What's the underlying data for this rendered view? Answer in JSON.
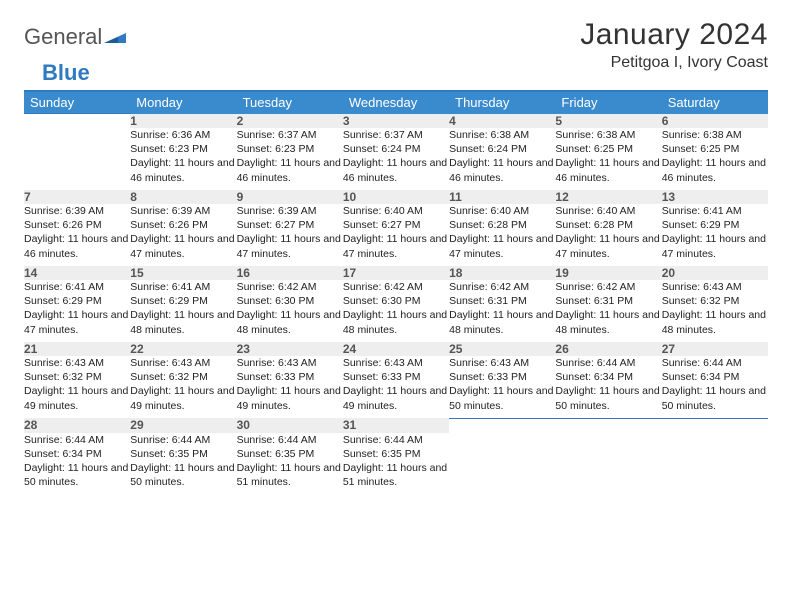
{
  "brand": {
    "word1": "General",
    "word2": "Blue"
  },
  "title": "January 2024",
  "location": "Petitgoa I, Ivory Coast",
  "colors": {
    "header_bg": "#3a8bce",
    "header_text": "#ffffff",
    "rule": "#2f7ac0",
    "daynum_bg": "#eeeeee",
    "daynum_text": "#555555",
    "body_text": "#222222",
    "page_bg": "#ffffff",
    "logo_gray": "#555555",
    "logo_blue": "#2f7ac0"
  },
  "weekday_labels": [
    "Sunday",
    "Monday",
    "Tuesday",
    "Wednesday",
    "Thursday",
    "Friday",
    "Saturday"
  ],
  "weeks": [
    [
      null,
      {
        "n": "1",
        "sr": "Sunrise: 6:36 AM",
        "ss": "Sunset: 6:23 PM",
        "dl": "Daylight: 11 hours and 46 minutes."
      },
      {
        "n": "2",
        "sr": "Sunrise: 6:37 AM",
        "ss": "Sunset: 6:23 PM",
        "dl": "Daylight: 11 hours and 46 minutes."
      },
      {
        "n": "3",
        "sr": "Sunrise: 6:37 AM",
        "ss": "Sunset: 6:24 PM",
        "dl": "Daylight: 11 hours and 46 minutes."
      },
      {
        "n": "4",
        "sr": "Sunrise: 6:38 AM",
        "ss": "Sunset: 6:24 PM",
        "dl": "Daylight: 11 hours and 46 minutes."
      },
      {
        "n": "5",
        "sr": "Sunrise: 6:38 AM",
        "ss": "Sunset: 6:25 PM",
        "dl": "Daylight: 11 hours and 46 minutes."
      },
      {
        "n": "6",
        "sr": "Sunrise: 6:38 AM",
        "ss": "Sunset: 6:25 PM",
        "dl": "Daylight: 11 hours and 46 minutes."
      }
    ],
    [
      {
        "n": "7",
        "sr": "Sunrise: 6:39 AM",
        "ss": "Sunset: 6:26 PM",
        "dl": "Daylight: 11 hours and 46 minutes."
      },
      {
        "n": "8",
        "sr": "Sunrise: 6:39 AM",
        "ss": "Sunset: 6:26 PM",
        "dl": "Daylight: 11 hours and 47 minutes."
      },
      {
        "n": "9",
        "sr": "Sunrise: 6:39 AM",
        "ss": "Sunset: 6:27 PM",
        "dl": "Daylight: 11 hours and 47 minutes."
      },
      {
        "n": "10",
        "sr": "Sunrise: 6:40 AM",
        "ss": "Sunset: 6:27 PM",
        "dl": "Daylight: 11 hours and 47 minutes."
      },
      {
        "n": "11",
        "sr": "Sunrise: 6:40 AM",
        "ss": "Sunset: 6:28 PM",
        "dl": "Daylight: 11 hours and 47 minutes."
      },
      {
        "n": "12",
        "sr": "Sunrise: 6:40 AM",
        "ss": "Sunset: 6:28 PM",
        "dl": "Daylight: 11 hours and 47 minutes."
      },
      {
        "n": "13",
        "sr": "Sunrise: 6:41 AM",
        "ss": "Sunset: 6:29 PM",
        "dl": "Daylight: 11 hours and 47 minutes."
      }
    ],
    [
      {
        "n": "14",
        "sr": "Sunrise: 6:41 AM",
        "ss": "Sunset: 6:29 PM",
        "dl": "Daylight: 11 hours and 47 minutes."
      },
      {
        "n": "15",
        "sr": "Sunrise: 6:41 AM",
        "ss": "Sunset: 6:29 PM",
        "dl": "Daylight: 11 hours and 48 minutes."
      },
      {
        "n": "16",
        "sr": "Sunrise: 6:42 AM",
        "ss": "Sunset: 6:30 PM",
        "dl": "Daylight: 11 hours and 48 minutes."
      },
      {
        "n": "17",
        "sr": "Sunrise: 6:42 AM",
        "ss": "Sunset: 6:30 PM",
        "dl": "Daylight: 11 hours and 48 minutes."
      },
      {
        "n": "18",
        "sr": "Sunrise: 6:42 AM",
        "ss": "Sunset: 6:31 PM",
        "dl": "Daylight: 11 hours and 48 minutes."
      },
      {
        "n": "19",
        "sr": "Sunrise: 6:42 AM",
        "ss": "Sunset: 6:31 PM",
        "dl": "Daylight: 11 hours and 48 minutes."
      },
      {
        "n": "20",
        "sr": "Sunrise: 6:43 AM",
        "ss": "Sunset: 6:32 PM",
        "dl": "Daylight: 11 hours and 48 minutes."
      }
    ],
    [
      {
        "n": "21",
        "sr": "Sunrise: 6:43 AM",
        "ss": "Sunset: 6:32 PM",
        "dl": "Daylight: 11 hours and 49 minutes."
      },
      {
        "n": "22",
        "sr": "Sunrise: 6:43 AM",
        "ss": "Sunset: 6:32 PM",
        "dl": "Daylight: 11 hours and 49 minutes."
      },
      {
        "n": "23",
        "sr": "Sunrise: 6:43 AM",
        "ss": "Sunset: 6:33 PM",
        "dl": "Daylight: 11 hours and 49 minutes."
      },
      {
        "n": "24",
        "sr": "Sunrise: 6:43 AM",
        "ss": "Sunset: 6:33 PM",
        "dl": "Daylight: 11 hours and 49 minutes."
      },
      {
        "n": "25",
        "sr": "Sunrise: 6:43 AM",
        "ss": "Sunset: 6:33 PM",
        "dl": "Daylight: 11 hours and 50 minutes."
      },
      {
        "n": "26",
        "sr": "Sunrise: 6:44 AM",
        "ss": "Sunset: 6:34 PM",
        "dl": "Daylight: 11 hours and 50 minutes."
      },
      {
        "n": "27",
        "sr": "Sunrise: 6:44 AM",
        "ss": "Sunset: 6:34 PM",
        "dl": "Daylight: 11 hours and 50 minutes."
      }
    ],
    [
      {
        "n": "28",
        "sr": "Sunrise: 6:44 AM",
        "ss": "Sunset: 6:34 PM",
        "dl": "Daylight: 11 hours and 50 minutes."
      },
      {
        "n": "29",
        "sr": "Sunrise: 6:44 AM",
        "ss": "Sunset: 6:35 PM",
        "dl": "Daylight: 11 hours and 50 minutes."
      },
      {
        "n": "30",
        "sr": "Sunrise: 6:44 AM",
        "ss": "Sunset: 6:35 PM",
        "dl": "Daylight: 11 hours and 51 minutes."
      },
      {
        "n": "31",
        "sr": "Sunrise: 6:44 AM",
        "ss": "Sunset: 6:35 PM",
        "dl": "Daylight: 11 hours and 51 minutes."
      },
      null,
      null,
      null
    ]
  ]
}
